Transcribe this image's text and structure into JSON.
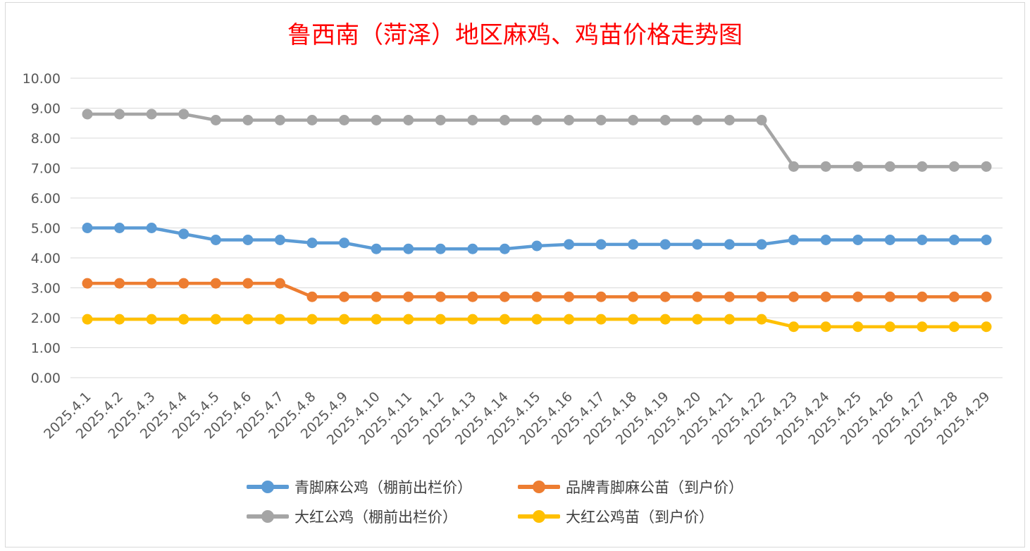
{
  "chart_data": {
    "type": "line",
    "title": "鲁西南（菏泽）地区麻鸡、鸡苗价格走势图",
    "xlabel": "",
    "ylabel": "",
    "ylim": [
      0,
      10
    ],
    "yticks": [
      "0.00",
      "1.00",
      "2.00",
      "3.00",
      "4.00",
      "5.00",
      "6.00",
      "7.00",
      "8.00",
      "9.00",
      "10.00"
    ],
    "grid": true,
    "legend_position": "bottom",
    "categories": [
      "2025.4.1",
      "2025.4.2",
      "2025.4.3",
      "2025.4.4",
      "2025.4.5",
      "2025.4.6",
      "2025.4.7",
      "2025.4.8",
      "2025.4.9",
      "2025.4.10",
      "2025.4.11",
      "2025.4.12",
      "2025.4.13",
      "2025.4.14",
      "2025.4.15",
      "2025.4.16",
      "2025.4.17",
      "2025.4.18",
      "2025.4.19",
      "2025.4.20",
      "2025.4.21",
      "2025.4.22",
      "2025.4.23",
      "2025.4.24",
      "2025.4.25",
      "2025.4.26",
      "2025.4.27",
      "2025.4.28",
      "2025.4.29"
    ],
    "series": [
      {
        "name": "青脚麻公鸡（棚前出栏价）",
        "color": "#5b9bd5",
        "values": [
          5.0,
          5.0,
          5.0,
          4.8,
          4.6,
          4.6,
          4.6,
          4.5,
          4.5,
          4.3,
          4.3,
          4.3,
          4.3,
          4.3,
          4.4,
          4.45,
          4.45,
          4.45,
          4.45,
          4.45,
          4.45,
          4.45,
          4.6,
          4.6,
          4.6,
          4.6,
          4.6,
          4.6,
          4.6
        ]
      },
      {
        "name": "品牌青脚麻公苗（到户价）",
        "color": "#ed7d31",
        "values": [
          3.15,
          3.15,
          3.15,
          3.15,
          3.15,
          3.15,
          3.15,
          2.7,
          2.7,
          2.7,
          2.7,
          2.7,
          2.7,
          2.7,
          2.7,
          2.7,
          2.7,
          2.7,
          2.7,
          2.7,
          2.7,
          2.7,
          2.7,
          2.7,
          2.7,
          2.7,
          2.7,
          2.7,
          2.7
        ]
      },
      {
        "name": "大红公鸡（棚前出栏价）",
        "color": "#a5a5a5",
        "values": [
          8.8,
          8.8,
          8.8,
          8.8,
          8.6,
          8.6,
          8.6,
          8.6,
          8.6,
          8.6,
          8.6,
          8.6,
          8.6,
          8.6,
          8.6,
          8.6,
          8.6,
          8.6,
          8.6,
          8.6,
          8.6,
          8.6,
          7.05,
          7.05,
          7.05,
          7.05,
          7.05,
          7.05,
          7.05
        ]
      },
      {
        "name": "大红公鸡苗（到户价）",
        "color": "#ffc000",
        "values": [
          1.95,
          1.95,
          1.95,
          1.95,
          1.95,
          1.95,
          1.95,
          1.95,
          1.95,
          1.95,
          1.95,
          1.95,
          1.95,
          1.95,
          1.95,
          1.95,
          1.95,
          1.95,
          1.95,
          1.95,
          1.95,
          1.95,
          1.7,
          1.7,
          1.7,
          1.7,
          1.7,
          1.7,
          1.7
        ]
      }
    ]
  }
}
